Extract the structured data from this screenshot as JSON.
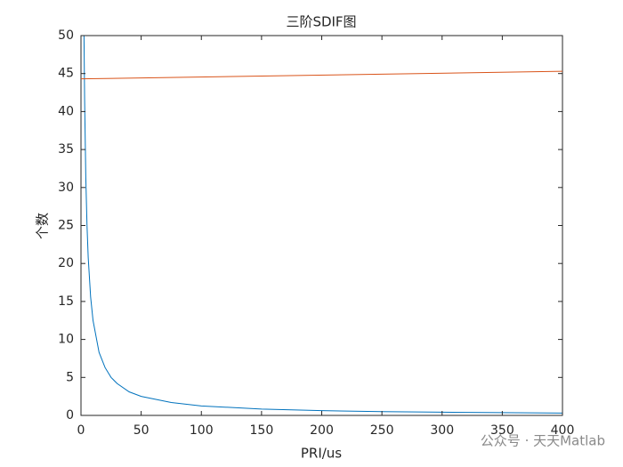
{
  "chart_data": {
    "type": "line",
    "title": "三阶SDIF图",
    "x_label": "PRI/us",
    "y_label": "个数",
    "series": [
      {
        "color": "#0072bd",
        "x": [
          2.5,
          3,
          4,
          5,
          6,
          8,
          10,
          15,
          20,
          25,
          30,
          40,
          50,
          75,
          100,
          150,
          200,
          250,
          300,
          350,
          400
        ],
        "values": [
          50,
          41.7,
          31.3,
          25,
          20.8,
          15.6,
          12.5,
          8.3,
          6.3,
          5,
          4.2,
          3.1,
          2.5,
          1.7,
          1.25,
          0.83,
          0.63,
          0.5,
          0.42,
          0.36,
          0.31
        ]
      },
      {
        "color": "#d95319",
        "x": [
          0,
          400
        ],
        "values": [
          44.3,
          45.3
        ]
      }
    ],
    "xlim": [
      0,
      400
    ],
    "xticks": [
      0,
      50,
      100,
      150,
      200,
      250,
      300,
      350,
      400
    ],
    "ylim": [
      0,
      50
    ],
    "yticks": [
      0,
      5,
      10,
      15,
      20,
      25,
      30,
      35,
      40,
      45,
      50
    ],
    "watermark": "公众号 · 天天Matlab"
  }
}
